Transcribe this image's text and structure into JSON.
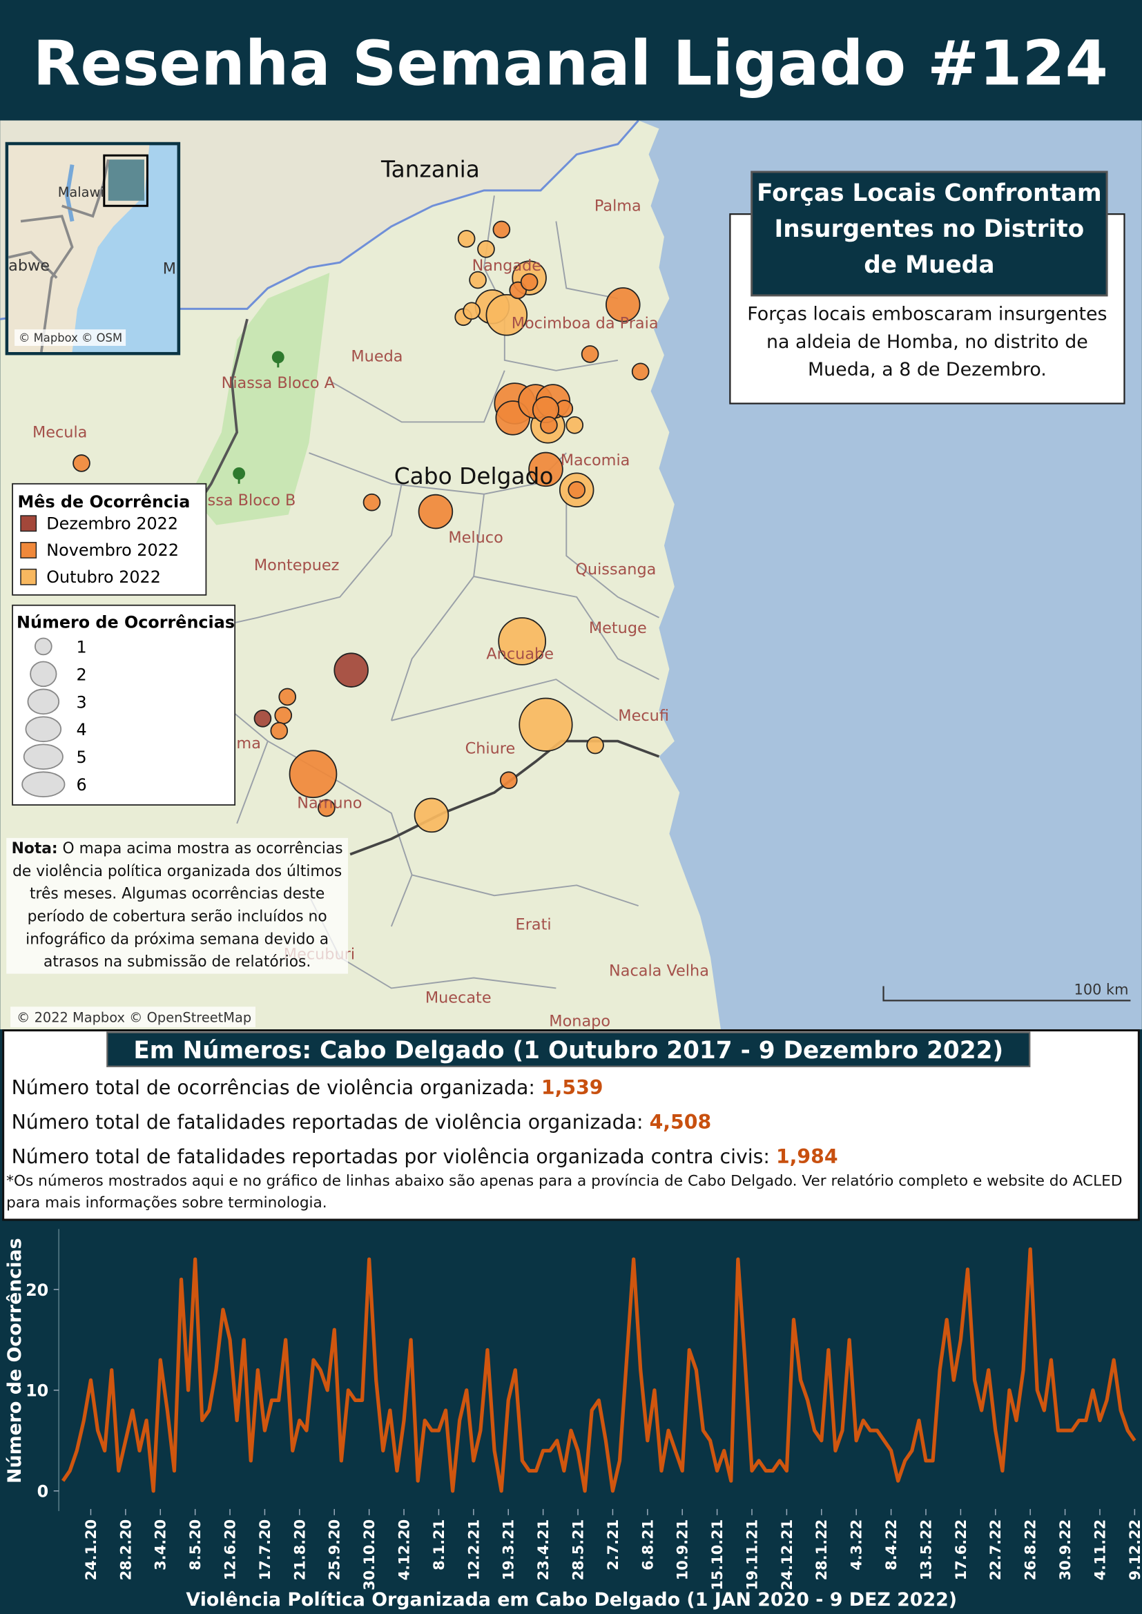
{
  "header": {
    "title": "Resenha Semanal Ligado #124"
  },
  "map": {
    "places": [
      {
        "name": "Tanzania",
        "major": true
      },
      {
        "name": "Palma"
      },
      {
        "name": "Nangade"
      },
      {
        "name": "Mocimboa da Praia"
      },
      {
        "name": "Mueda"
      },
      {
        "name": "Niassa Bloco A"
      },
      {
        "name": "Mecula"
      },
      {
        "name": "Macomia"
      },
      {
        "name": "Cabo Delgado",
        "major": true
      },
      {
        "name": "Niassa Bloco B"
      },
      {
        "name": "Meluco"
      },
      {
        "name": "Montepuez"
      },
      {
        "name": "Quissanga"
      },
      {
        "name": "Metuge"
      },
      {
        "name": "Ancuabe"
      },
      {
        "name": "Mecufi"
      },
      {
        "name": "Balama"
      },
      {
        "name": "Chiure"
      },
      {
        "name": "Namuno"
      },
      {
        "name": "Erati"
      },
      {
        "name": "Nacala Velha"
      },
      {
        "name": "Mecuburi"
      },
      {
        "name": "Muecate"
      },
      {
        "name": "Monapo"
      }
    ],
    "inset": {
      "labels": [
        "Malawi",
        "abwe",
        "M"
      ],
      "attribution": "© Mapbox © OSM"
    },
    "attribution": "© 2022 Mapbox © OpenStreetMap",
    "scale": "100 km",
    "month_legend_title": "Mês de Ocorrência",
    "months": [
      {
        "name": "Dezembro 2022",
        "color": "#a3473a",
        "counts": [
          3,
          1
        ]
      },
      {
        "name": "Novembro 2022",
        "color": "#f0883a",
        "counts": [
          1,
          3,
          1,
          1,
          1,
          1,
          4,
          3,
          3,
          3,
          1,
          2,
          1,
          3,
          1,
          3,
          1,
          1,
          1,
          1,
          1,
          5,
          1,
          1
        ]
      },
      {
        "name": "Outubro 2022",
        "color": "#f8b860",
        "counts": [
          1,
          1,
          1,
          3,
          3,
          4,
          1,
          1,
          3,
          1,
          3,
          5,
          6,
          1,
          3
        ]
      }
    ],
    "size_legend": {
      "title": "Número de Ocorrências",
      "values": [
        1,
        2,
        3,
        4,
        5,
        6
      ]
    },
    "note": {
      "label": "Nota:",
      "text": "O mapa acima mostra as ocorrências de violência política organizada dos últimos três meses. Algumas ocorrências deste período de cobertura serão incluídos no infográfico da próxima semana devido a atrasos na submissão de relatórios."
    },
    "callout": {
      "title": "Forças Locais Confrontam Insurgentes no Distrito de Mueda",
      "text": "Forças locais emboscaram insurgentes na aldeia de Homba, no distrito de Mueda, a 8 de Dezembro."
    }
  },
  "stats": {
    "title": "Em Números: Cabo Delgado (1 Outubro 2017 - 9 Dezembro 2022)",
    "items": [
      {
        "label": "Número total de ocorrências de violência organizada:",
        "value": "1,539"
      },
      {
        "label": "Número total de fatalidades reportadas de violência organizada:",
        "value": "4,508"
      },
      {
        "label": "Número total de fatalidades reportadas por violência organizada contra civis:",
        "value": "1,984"
      }
    ],
    "footnote": "*Os números mostrados aqui e no gráfico de linhas abaixo são apenas para a província de Cabo Delgado. Ver relatório completo e website do ACLED para mais informações sobre terminologia."
  },
  "chart_data": {
    "type": "line",
    "x_label": "Violência Política Organizada em Cabo Delgado (1 JAN 2020 - 9 DEZ 2022)",
    "y_label": "Número de Ocorrências",
    "color": "#d0560f",
    "categories": [
      null,
      null,
      null,
      null,
      "24.1.20",
      null,
      null,
      null,
      null,
      "28.2.20",
      null,
      null,
      null,
      null,
      "3.4.20",
      null,
      null,
      null,
      null,
      "8.5.20",
      null,
      null,
      null,
      null,
      "12.6.20",
      null,
      null,
      null,
      null,
      "17.7.20",
      null,
      null,
      null,
      null,
      "21.8.20",
      null,
      null,
      null,
      null,
      "25.9.20",
      null,
      null,
      null,
      null,
      "30.10.20",
      null,
      null,
      null,
      null,
      "4.12.20",
      null,
      null,
      null,
      null,
      "8.1.21",
      null,
      null,
      null,
      null,
      "12.2.21",
      null,
      null,
      null,
      null,
      "19.3.21",
      null,
      null,
      null,
      null,
      "23.4.21",
      null,
      null,
      null,
      null,
      "28.5.21",
      null,
      null,
      null,
      null,
      "2.7.21",
      null,
      null,
      null,
      null,
      "6.8.21",
      null,
      null,
      null,
      null,
      "10.9.21",
      null,
      null,
      null,
      null,
      "15.10.21",
      null,
      null,
      null,
      null,
      "19.11.21",
      null,
      null,
      null,
      null,
      "24.12.21",
      null,
      null,
      null,
      null,
      "28.1.22",
      null,
      null,
      null,
      null,
      "4.3.22",
      null,
      null,
      null,
      null,
      "8.4.22",
      null,
      null,
      null,
      null,
      "13.5.22",
      null,
      null,
      null,
      null,
      "17.6.22",
      null,
      null,
      null,
      null,
      "22.7.22",
      null,
      null,
      null,
      null,
      "26.8.22",
      null,
      null,
      null,
      null,
      "30.9.22",
      null,
      null,
      null,
      null,
      "4.11.22",
      null,
      null,
      null,
      null,
      "9.12.22"
    ],
    "values": [
      1,
      2,
      4,
      7,
      11,
      6,
      4,
      12,
      2,
      5,
      8,
      4,
      7,
      0,
      13,
      8,
      2,
      21,
      10,
      23,
      7,
      8,
      12,
      18,
      15,
      7,
      15,
      3,
      12,
      6,
      9,
      9,
      15,
      4,
      7,
      6,
      13,
      12,
      10,
      16,
      3,
      10,
      9,
      9,
      23,
      11,
      4,
      8,
      2,
      7,
      15,
      1,
      7,
      6,
      6,
      8,
      0,
      7,
      10,
      3,
      6,
      14,
      4,
      0,
      9,
      12,
      3,
      2,
      2,
      4,
      4,
      5,
      2,
      6,
      4,
      0,
      8,
      9,
      5,
      0,
      3,
      13,
      23,
      12,
      5,
      10,
      2,
      6,
      4,
      2,
      14,
      12,
      6,
      5,
      2,
      4,
      1,
      23,
      13,
      2,
      3,
      2,
      2,
      3,
      2,
      17,
      11,
      9,
      6,
      5,
      14,
      4,
      6,
      15,
      5,
      7,
      6,
      6,
      5,
      4,
      1,
      3,
      4,
      7,
      3,
      3,
      12,
      17,
      11,
      15,
      22,
      11,
      8,
      12,
      6,
      2,
      10,
      7,
      12,
      24,
      10,
      8,
      13,
      6,
      6,
      6,
      7,
      7,
      10,
      7,
      9,
      13,
      8,
      6,
      5
    ],
    "ylim": [
      -2,
      26
    ],
    "yticks": [
      0,
      10,
      20
    ]
  }
}
